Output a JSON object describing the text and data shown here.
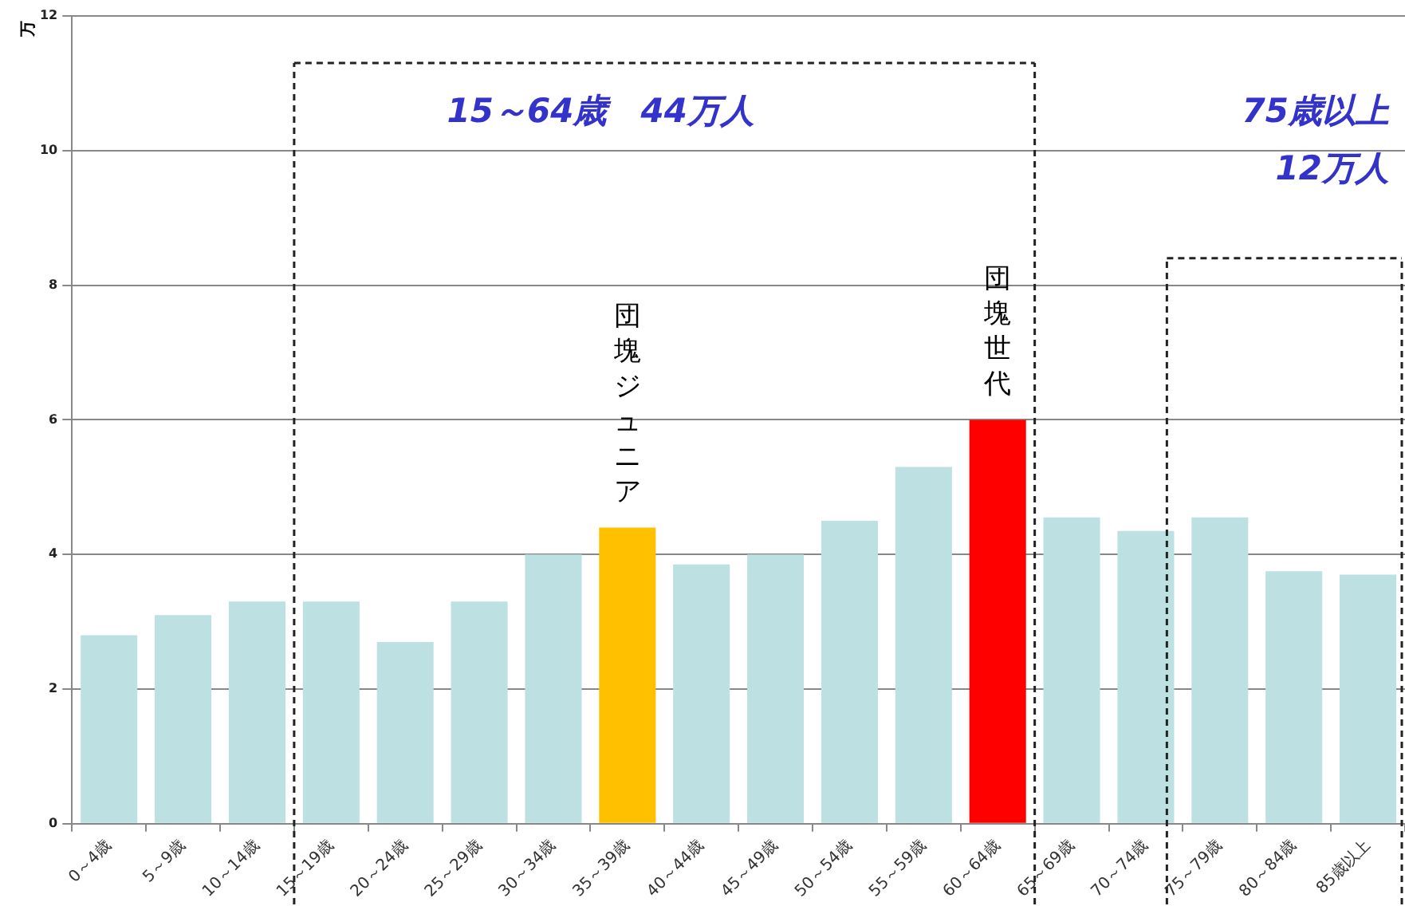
{
  "chart_data": {
    "type": "bar",
    "ylabel": "万",
    "categories": [
      "0～4歳",
      "5～9歳",
      "10～14歳",
      "15～19歳",
      "20～24歳",
      "25～29歳",
      "30～34歳",
      "35～39歳",
      "40～44歳",
      "45～49歳",
      "50～54歳",
      "55～59歳",
      "60～64歳",
      "65～69歳",
      "70～74歳",
      "75～79歳",
      "80～84歳",
      "85歳以上"
    ],
    "values": [
      2.8,
      3.1,
      3.3,
      3.3,
      2.7,
      3.3,
      4.0,
      4.4,
      3.85,
      4.0,
      4.5,
      5.3,
      6.0,
      4.55,
      4.35,
      4.55,
      3.75,
      3.7
    ],
    "colors": [
      "#bde0e3",
      "#bde0e3",
      "#bde0e3",
      "#bde0e3",
      "#bde0e3",
      "#bde0e3",
      "#bde0e3",
      "#ffc000",
      "#bde0e3",
      "#bde0e3",
      "#bde0e3",
      "#bde0e3",
      "#ff0000",
      "#bde0e3",
      "#bde0e3",
      "#bde0e3",
      "#bde0e3",
      "#bde0e3"
    ],
    "ylim": [
      0,
      12
    ],
    "yticks": [
      0,
      2,
      4,
      6,
      8,
      10,
      12
    ],
    "grid": "y",
    "annotations": [
      "15～64歳　44万人",
      "75歳以上",
      "12万人",
      {
        "text": "団塊ジュニア",
        "x": "35～39歳",
        "y": 4.4
      },
      {
        "text": "団塊世代",
        "x": "60～64歳",
        "y": 6.0
      }
    ]
  }
}
